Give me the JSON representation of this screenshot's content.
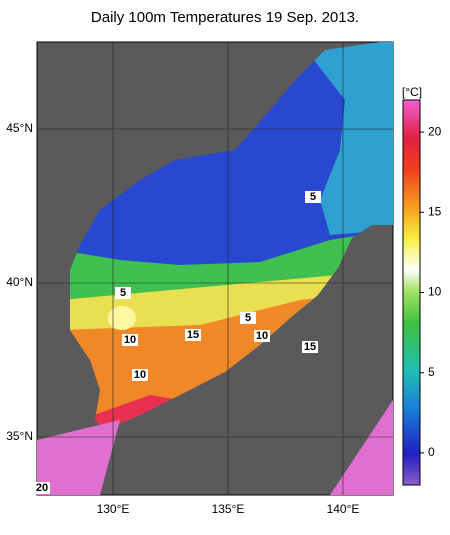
{
  "title": "Daily 100m Temperatures 19 Sep. 2013.",
  "latitudes": [
    {
      "value": 45,
      "label": "45°N"
    },
    {
      "value": 40,
      "label": "40°N"
    },
    {
      "value": 35,
      "label": "35°N"
    }
  ],
  "longitudes": [
    {
      "value": 130,
      "label": "130°E"
    },
    {
      "value": 135,
      "label": "135°E"
    },
    {
      "value": 140,
      "label": "140°E"
    }
  ],
  "colorbar": {
    "unit": "[°C]",
    "range": [
      -2,
      22
    ],
    "ticks": [
      0,
      5,
      10,
      15,
      20
    ]
  },
  "contour_labels": [
    "5",
    "5",
    "5",
    "10",
    "15",
    "10",
    "15",
    "10",
    "20"
  ]
}
